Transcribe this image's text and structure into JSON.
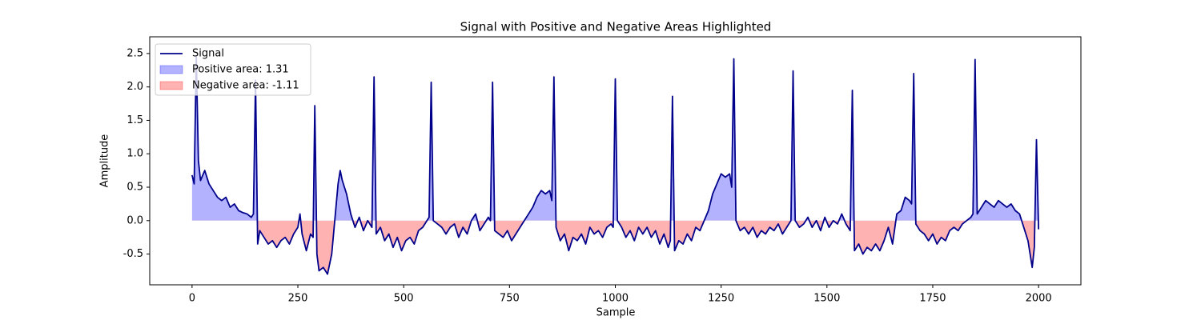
{
  "chart_data": {
    "type": "line",
    "title": "Signal with Positive and Negative Areas Highlighted",
    "x_label": "Sample",
    "y_label": "Amplitude",
    "x": [
      0,
      5,
      10,
      15,
      20,
      30,
      40,
      50,
      60,
      70,
      80,
      90,
      100,
      110,
      120,
      130,
      140,
      145,
      150,
      155,
      160,
      170,
      180,
      190,
      200,
      210,
      220,
      230,
      240,
      250,
      255,
      260,
      270,
      280,
      286,
      290,
      295,
      300,
      310,
      320,
      330,
      340,
      345,
      350,
      355,
      365,
      375,
      385,
      395,
      405,
      415,
      425,
      430,
      435,
      445,
      455,
      465,
      475,
      485,
      495,
      505,
      515,
      525,
      535,
      545,
      555,
      560,
      565,
      570,
      580,
      590,
      600,
      610,
      620,
      630,
      640,
      650,
      660,
      670,
      680,
      690,
      700,
      705,
      710,
      715,
      725,
      735,
      745,
      755,
      765,
      775,
      785,
      795,
      805,
      815,
      825,
      835,
      845,
      850,
      855,
      860,
      870,
      880,
      890,
      900,
      910,
      920,
      930,
      940,
      950,
      960,
      970,
      980,
      990,
      995,
      1000,
      1005,
      1015,
      1025,
      1035,
      1045,
      1055,
      1065,
      1075,
      1085,
      1095,
      1105,
      1115,
      1125,
      1130,
      1135,
      1140,
      1150,
      1160,
      1170,
      1180,
      1190,
      1200,
      1210,
      1220,
      1230,
      1240,
      1250,
      1260,
      1270,
      1275,
      1280,
      1285,
      1295,
      1305,
      1315,
      1325,
      1335,
      1345,
      1355,
      1365,
      1375,
      1385,
      1395,
      1405,
      1415,
      1420,
      1425,
      1435,
      1445,
      1455,
      1465,
      1475,
      1485,
      1495,
      1505,
      1515,
      1525,
      1535,
      1545,
      1555,
      1560,
      1565,
      1575,
      1585,
      1595,
      1605,
      1615,
      1625,
      1635,
      1645,
      1655,
      1665,
      1675,
      1685,
      1695,
      1700,
      1705,
      1710,
      1720,
      1730,
      1740,
      1750,
      1760,
      1770,
      1780,
      1790,
      1800,
      1810,
      1820,
      1830,
      1840,
      1845,
      1850,
      1855,
      1865,
      1875,
      1885,
      1895,
      1905,
      1915,
      1925,
      1935,
      1945,
      1955,
      1965,
      1975,
      1985,
      1990,
      1995,
      2000
    ],
    "series": [
      {
        "name": "Signal",
        "color": "#00008b",
        "values": [
          0.68,
          0.55,
          2.45,
          0.9,
          0.6,
          0.75,
          0.55,
          0.45,
          0.35,
          0.3,
          0.35,
          0.2,
          0.25,
          0.15,
          0.12,
          0.1,
          0.05,
          0.1,
          2.1,
          -0.35,
          -0.15,
          -0.25,
          -0.35,
          -0.3,
          -0.4,
          -0.3,
          -0.25,
          -0.35,
          -0.2,
          -0.1,
          0.1,
          -0.2,
          -0.45,
          -0.2,
          -0.25,
          1.72,
          -0.5,
          -0.75,
          -0.7,
          -0.8,
          -0.5,
          0.2,
          0.55,
          0.75,
          0.6,
          0.4,
          0.1,
          -0.1,
          0.05,
          -0.15,
          0.0,
          -0.1,
          2.15,
          -0.2,
          -0.1,
          -0.3,
          -0.2,
          -0.4,
          -0.25,
          -0.45,
          -0.3,
          -0.25,
          -0.35,
          -0.15,
          -0.1,
          0.0,
          0.05,
          2.07,
          0.0,
          -0.05,
          -0.1,
          -0.2,
          -0.1,
          -0.05,
          -0.25,
          -0.1,
          -0.2,
          0.0,
          0.1,
          -0.15,
          -0.05,
          0.05,
          0.0,
          2.07,
          -0.15,
          -0.2,
          -0.25,
          -0.15,
          -0.3,
          -0.2,
          -0.1,
          0.0,
          0.1,
          0.2,
          0.35,
          0.45,
          0.4,
          0.45,
          0.3,
          2.15,
          -0.1,
          -0.3,
          -0.2,
          -0.45,
          -0.25,
          -0.3,
          -0.2,
          -0.35,
          -0.1,
          -0.2,
          -0.15,
          -0.25,
          -0.1,
          -0.05,
          -0.1,
          2.12,
          0.0,
          -0.1,
          -0.25,
          -0.15,
          -0.3,
          -0.1,
          -0.2,
          -0.1,
          -0.25,
          -0.15,
          -0.35,
          -0.2,
          -0.4,
          -0.3,
          1.86,
          -0.45,
          -0.3,
          -0.35,
          -0.2,
          -0.3,
          -0.1,
          -0.15,
          0.0,
          0.15,
          0.4,
          0.55,
          0.7,
          0.65,
          0.7,
          0.5,
          2.42,
          0.0,
          -0.15,
          -0.1,
          -0.2,
          -0.1,
          -0.25,
          -0.15,
          -0.2,
          -0.1,
          -0.15,
          -0.05,
          -0.2,
          -0.1,
          0.0,
          2.24,
          0.0,
          -0.1,
          -0.05,
          0.05,
          -0.1,
          0.0,
          -0.15,
          0.05,
          -0.1,
          0.0,
          -0.05,
          0.1,
          -0.05,
          -0.15,
          1.95,
          -0.45,
          -0.35,
          -0.5,
          -0.4,
          -0.45,
          -0.35,
          -0.45,
          -0.3,
          -0.1,
          -0.35,
          0.1,
          0.15,
          0.35,
          0.3,
          0.25,
          2.2,
          -0.05,
          -0.15,
          -0.2,
          -0.3,
          -0.2,
          -0.35,
          -0.25,
          -0.3,
          -0.15,
          -0.1,
          -0.15,
          -0.05,
          0.0,
          0.05,
          0.1,
          2.41,
          0.1,
          0.2,
          0.3,
          0.25,
          0.2,
          0.3,
          0.25,
          0.2,
          0.25,
          0.15,
          0.1,
          -0.1,
          -0.3,
          -0.7,
          -0.4,
          1.21,
          -0.13
        ]
      }
    ],
    "fills": [
      {
        "name": "Positive area: 1.31",
        "color": "#0000ff",
        "sign": "positive"
      },
      {
        "name": "Negative area: -1.11",
        "color": "#ff0000",
        "sign": "negative"
      }
    ],
    "fill_opacity": 0.3,
    "xlim": [
      -100,
      2100
    ],
    "ylim": [
      -0.96,
      2.75
    ],
    "xticks": [
      0,
      250,
      500,
      750,
      1000,
      1250,
      1500,
      1750,
      2000
    ],
    "yticks": [
      -0.5,
      {
        "value": 0,
        "label": "0.0"
      },
      0.5,
      {
        "value": 1,
        "label": "1.0"
      },
      1.5,
      {
        "value": 2,
        "label": "2.0"
      },
      2.5
    ],
    "legend": "upper left",
    "grid": false
  }
}
